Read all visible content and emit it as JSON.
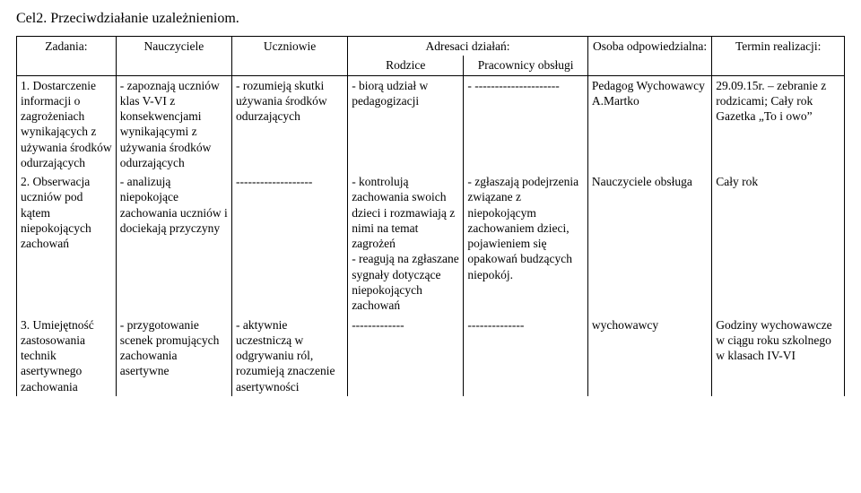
{
  "heading": "Cel2. Przeciwdziałanie uzależnieniom.",
  "superheader": "Adresaci działań:",
  "headers": {
    "zadania": "Zadania:",
    "nauczyciele": "Nauczyciele",
    "uczniowie": "Uczniowie",
    "rodzice": "Rodzice",
    "pracownicy": "Pracownicy obsługi",
    "osoba": "Osoba odpowiedzialna:",
    "termin": "Termin realizacji:"
  },
  "rows": [
    {
      "zadania": "1. Dostarczenie informacji o zagrożeniach wynikających z używania środków odurzających",
      "nauczyciele": "- zapoznają uczniów klas V-VI z konsekwencjami wynikającymi z używania środków odurzających",
      "uczniowie": "- rozumieją skutki używania środków odurzających",
      "rodzice": "- biorą udział w pedagogizacji",
      "pracownicy": "- ---------------------",
      "osoba": "Pedagog Wychowawcy A.Martko",
      "termin": "29.09.15r. – zebranie z rodzicami; Cały rok Gazetka „To i owo”"
    },
    {
      "zadania": "2. Obserwacja uczniów pod kątem niepokojących zachowań",
      "nauczyciele": "- analizują niepokojące zachowania uczniów i dociekają przyczyny",
      "uczniowie": "-------------------",
      "rodzice": "- kontrolują zachowania swoich dzieci i rozmawiają z nimi na temat zagrożeń\n- reagują na zgłaszane sygnały dotyczące niepokojących zachowań",
      "pracownicy": "- zgłaszają podejrzenia związane z niepokojącym zachowaniem dzieci, pojawieniem się opakowań budzących niepokój.",
      "osoba": "Nauczyciele obsługa",
      "termin": "Cały rok"
    },
    {
      "zadania": "3. Umiejętność zastosowania technik asertywnego zachowania",
      "nauczyciele": "- przygotowanie scenek promujących zachowania asertywne",
      "uczniowie": "- aktywnie uczestniczą w odgrywaniu ról, rozumieją znaczenie asertywności",
      "rodzice": "-------------",
      "pracownicy": "--------------",
      "osoba": "wychowawcy",
      "termin": "Godziny wychowawcze w ciągu roku szkolnego w klasach IV-VI"
    }
  ]
}
